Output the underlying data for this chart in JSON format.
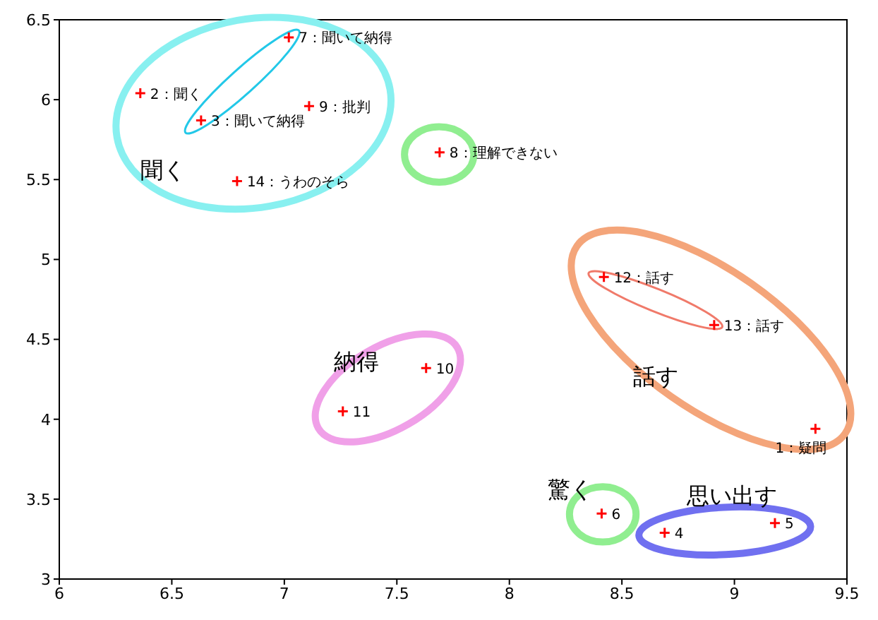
{
  "chart_data": {
    "type": "scatter",
    "x": [
      9.36,
      6.36,
      6.63,
      8.69,
      9.18,
      8.41,
      7.02,
      7.69,
      7.11,
      7.63,
      7.26,
      8.42,
      8.91,
      6.79
    ],
    "values": [
      3.94,
      6.04,
      5.87,
      3.29,
      3.35,
      3.41,
      6.39,
      5.67,
      5.96,
      4.32,
      4.05,
      4.89,
      4.59,
      5.49
    ],
    "color": "#ff0000",
    "marker": "cross",
    "grid": false,
    "xlim": [
      6,
      9.5
    ],
    "xticks": [
      6,
      6.5,
      7,
      7.5,
      8,
      8.5,
      9,
      9.5
    ],
    "ylim": [
      3,
      6.5
    ],
    "yticks": [
      3,
      3.5,
      4,
      4.5,
      5,
      5.5,
      6,
      6.5
    ],
    "annotations": [
      {
        "text": "1：疑問",
        "x": 9.36,
        "y": 3.94
      },
      {
        "text": "2：聞く",
        "x": 6.36,
        "y": 6.04
      },
      {
        "text": "3：聞いて納得",
        "x": 6.63,
        "y": 5.87
      },
      {
        "text": "4",
        "x": 8.69,
        "y": 3.29
      },
      {
        "text": "5",
        "x": 9.18,
        "y": 3.35
      },
      {
        "text": "6",
        "x": 8.41,
        "y": 3.41
      },
      {
        "text": "7：聞いて納得",
        "x": 7.02,
        "y": 6.39
      },
      {
        "text": "8：理解できない",
        "x": 7.69,
        "y": 5.67
      },
      {
        "text": "9：批判",
        "x": 7.11,
        "y": 5.96
      },
      {
        "text": "10",
        "x": 7.63,
        "y": 4.32
      },
      {
        "text": "11",
        "x": 7.26,
        "y": 4.05
      },
      {
        "text": "12：話す",
        "x": 8.42,
        "y": 4.89
      },
      {
        "text": "13：話す",
        "x": 8.91,
        "y": 4.59
      },
      {
        "text": "14：うわのそら",
        "x": 6.79,
        "y": 5.49
      },
      "聞く",
      "納得",
      "話す",
      "驚く",
      "思い出す"
    ]
  }
}
